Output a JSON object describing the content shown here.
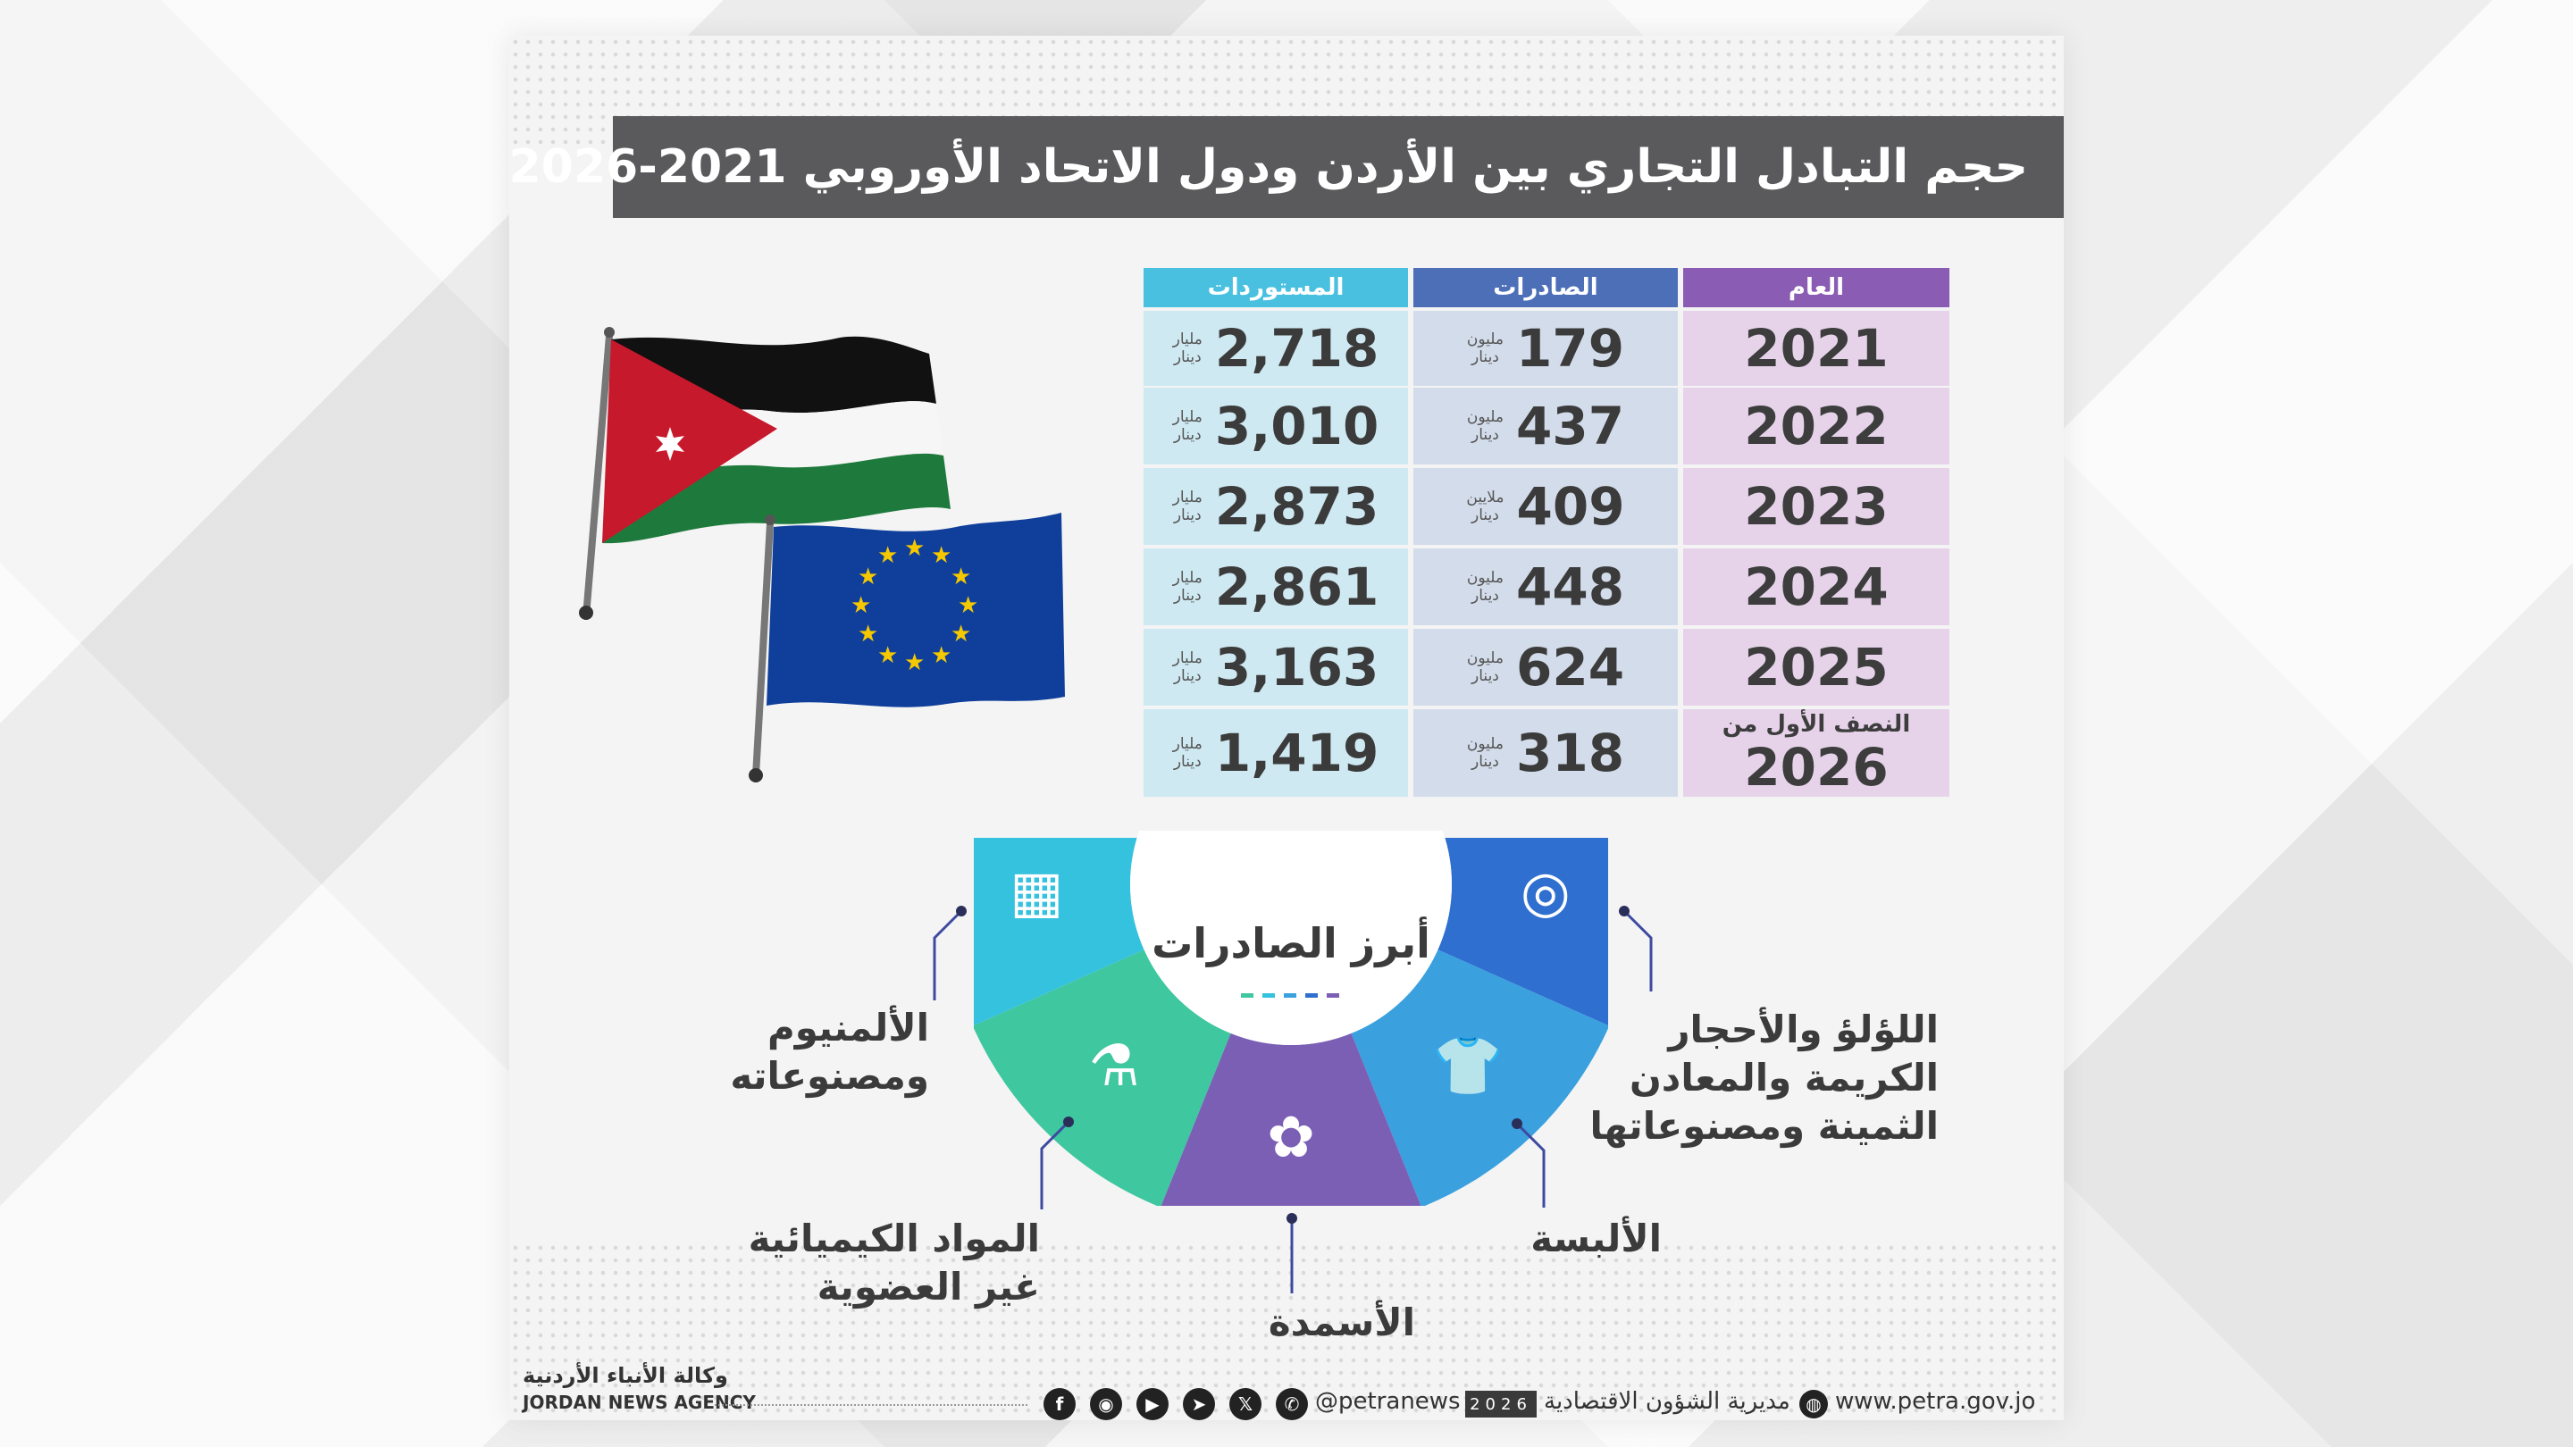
{
  "title": "حجم التبادل التجاري بين الأردن ودول الاتحاد الأوروبي 2021-2026",
  "table": {
    "headers": {
      "year": "العام",
      "exports": "الصادرات",
      "imports": "المستوردات"
    },
    "rows": [
      {
        "year": "2021",
        "exports": "179",
        "exports_unit": [
          "مليون",
          "دينار"
        ],
        "imports": "2,718",
        "imports_unit": [
          "مليار",
          "دينار"
        ]
      },
      {
        "year": "2022",
        "exports": "437",
        "exports_unit": [
          "مليون",
          "دينار"
        ],
        "imports": "3,010",
        "imports_unit": [
          "مليار",
          "دينار"
        ]
      },
      {
        "year": "2023",
        "exports": "409",
        "exports_unit": [
          "ملايين",
          "دينار"
        ],
        "imports": "2,873",
        "imports_unit": [
          "مليار",
          "دينار"
        ]
      },
      {
        "year": "2024",
        "exports": "448",
        "exports_unit": [
          "مليون",
          "دينار"
        ],
        "imports": "2,861",
        "imports_unit": [
          "مليار",
          "دينار"
        ]
      },
      {
        "year": "2025",
        "exports": "624",
        "exports_unit": [
          "مليون",
          "دينار"
        ],
        "imports": "3,163",
        "imports_unit": [
          "مليار",
          "دينار"
        ]
      },
      {
        "year_prefix": "النصف الأول من",
        "year": "2026",
        "exports": "318",
        "exports_unit": [
          "مليون",
          "دينار"
        ],
        "imports": "1,419",
        "imports_unit": [
          "مليار",
          "دينار"
        ]
      }
    ]
  },
  "top_exports": {
    "heading": "أبرز الصادرات",
    "items": [
      {
        "lines": [
          "اللؤلؤ والأحجار",
          "الكريمة والمعادن",
          "الثمينة ومصنوعاتها"
        ],
        "icon": "necklace-icon",
        "color": "#2f6fd0"
      },
      {
        "lines": [
          "الألبسة"
        ],
        "icon": "tshirt-icon",
        "color": "#3aa0de"
      },
      {
        "lines": [
          "الأسمدة"
        ],
        "icon": "fertilizer-bag-icon",
        "color": "#7b5fb5"
      },
      {
        "lines": [
          "المواد الكيميائية",
          "غير العضوية"
        ],
        "icon": "flask-icon",
        "color": "#3fc7a0"
      },
      {
        "lines": [
          "الألمنيوم",
          "ومصنوعاته"
        ],
        "icon": "aluminium-bars-icon",
        "color": "#35c2de"
      }
    ]
  },
  "footer": {
    "website": "www.petra.gov.jo",
    "department": "مديرية الشؤون الاقتصادية",
    "year_badge": "2026",
    "handle": "@petranews",
    "agency_ar": "وكالة الأنباء الأردنية",
    "agency_en": "JORDAN NEWS AGENCY",
    "social": [
      "whatsapp-icon",
      "x-icon",
      "telegram-icon",
      "youtube-icon",
      "instagram-icon",
      "facebook-icon"
    ]
  },
  "colors": {
    "year_header": "#8a5cb3",
    "exports_header": "#4d6fb8",
    "imports_header": "#49c0df",
    "title_bar": "#5a5a5c"
  }
}
